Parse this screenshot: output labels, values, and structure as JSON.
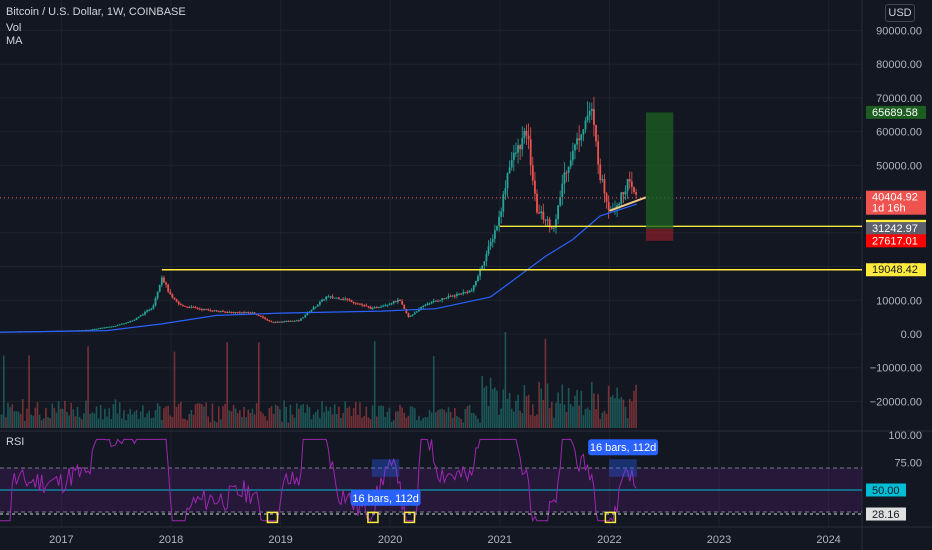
{
  "header": {
    "title": "Bitcoin / U.S. Dollar, 1W, COINBASE",
    "indicators": [
      "Vol",
      "MA"
    ],
    "currency_button": "USD"
  },
  "rsi_pane": {
    "label": "RSI"
  },
  "colors": {
    "background": "#131722",
    "up": "#26a69a",
    "down": "#ef5350",
    "ma": "#2962ff",
    "level": "#ffeb3b",
    "rsi": "#9c27b0",
    "grid": "#1e222d",
    "text": "#b2b5be"
  },
  "chart_data": [
    {
      "type": "candlestick",
      "title": "Bitcoin / U.S. Dollar, 1W, COINBASE",
      "x_ticks": [
        "2017",
        "2018",
        "2019",
        "2020",
        "2021",
        "2022",
        "2023",
        "2024"
      ],
      "y_ticks": [
        "90000.00",
        "80000.00",
        "70000.00",
        "60000.00",
        "50000.00",
        "40000.00",
        "30000.00",
        "20000.00",
        "10000.00",
        "0.00",
        "−10000.00",
        "−20000.00"
      ],
      "ylim": [
        -25000,
        95000
      ],
      "price_path": [
        [
          "2016-06",
          700
        ],
        [
          "2017-01",
          950
        ],
        [
          "2017-04",
          1200
        ],
        [
          "2017-07",
          2500
        ],
        [
          "2017-09",
          4200
        ],
        [
          "2017-11",
          8000
        ],
        [
          "2017-12",
          17000
        ],
        [
          "2018-01",
          11000
        ],
        [
          "2018-02",
          8500
        ],
        [
          "2018-04",
          7500
        ],
        [
          "2018-07",
          6500
        ],
        [
          "2018-10",
          6300
        ],
        [
          "2018-12",
          3500
        ],
        [
          "2019-03",
          4000
        ],
        [
          "2019-06",
          11000
        ],
        [
          "2019-08",
          10500
        ],
        [
          "2019-11",
          7500
        ],
        [
          "2020-02",
          10000
        ],
        [
          "2020-03",
          5000
        ],
        [
          "2020-05",
          9000
        ],
        [
          "2020-08",
          11500
        ],
        [
          "2020-10",
          13000
        ],
        [
          "2020-12",
          27000
        ],
        [
          "2021-01",
          35000
        ],
        [
          "2021-02",
          50000
        ],
        [
          "2021-04",
          60000
        ],
        [
          "2021-05",
          37000
        ],
        [
          "2021-07",
          31000
        ],
        [
          "2021-08",
          47000
        ],
        [
          "2021-10",
          61000
        ],
        [
          "2021-11",
          67000
        ],
        [
          "2021-12",
          47000
        ],
        [
          "2022-01",
          37000
        ],
        [
          "2022-02",
          39000
        ],
        [
          "2022-03",
          45000
        ],
        [
          "2022-04",
          40400
        ]
      ],
      "moving_average_path": [
        [
          "2016-06",
          500
        ],
        [
          "2017-06",
          1000
        ],
        [
          "2017-12",
          3000
        ],
        [
          "2018-06",
          5500
        ],
        [
          "2019-01",
          6200
        ],
        [
          "2019-12",
          6800
        ],
        [
          "2020-06",
          7500
        ],
        [
          "2020-12",
          11000
        ],
        [
          "2021-03",
          17000
        ],
        [
          "2021-06",
          23000
        ],
        [
          "2021-09",
          28000
        ],
        [
          "2021-12",
          35000
        ],
        [
          "2022-04",
          38500
        ]
      ],
      "horizontal_levels": [
        {
          "price": 31918.35,
          "label": "31918.35",
          "from": "2021-01"
        },
        {
          "price": 19048.42,
          "label": "19048.42",
          "from": "2017-12"
        }
      ],
      "trendline": {
        "from": [
          "2022-01",
          36500
        ],
        "to": [
          "2022-05",
          40500
        ]
      },
      "position_box": {
        "from": "2022-05",
        "to": "2022-08",
        "entry": 31242.97,
        "target": 65689.58,
        "stop": 27617.01
      },
      "price_labels": [
        {
          "text": "65689.58",
          "price": 65689.58,
          "bg": "#1b5e20",
          "fg": "#ffffff"
        },
        {
          "text": "40404.92",
          "sub": "1d 16h",
          "price": 40404.92,
          "bg": "#ef5350",
          "fg": "#ffffff"
        },
        {
          "text": "31918.35",
          "price": 31918.35,
          "bg": "#ffeb3b",
          "fg": "#131722"
        },
        {
          "text": "31242.97",
          "price": 31242.97,
          "bg": "#5d606b",
          "fg": "#ffffff"
        },
        {
          "text": "27617.01",
          "price": 27617.01,
          "bg": "#ff0000",
          "fg": "#ffffff"
        },
        {
          "text": "19048.42",
          "price": 19048.42,
          "bg": "#ffeb3b",
          "fg": "#131722"
        }
      ]
    },
    {
      "type": "line",
      "title": "RSI",
      "y_ticks": [
        "100.00",
        "75.00",
        "50.00"
      ],
      "ylim": [
        15,
        100
      ],
      "bands": [
        70,
        30
      ],
      "value_labels": [
        {
          "text": "50.00",
          "value": 50,
          "bg": "#00bcd4",
          "fg": "#131722"
        },
        {
          "text": "28.16",
          "value": 28.16,
          "bg": "#e0e0e0",
          "fg": "#131722",
          "dashed_line": true
        }
      ],
      "annotations": [
        {
          "text": "16 bars, 112d",
          "at": "2019-11",
          "range": [
            "2019-11",
            "2020-02"
          ],
          "placement": "below"
        },
        {
          "text": "16 bars, 112d",
          "at": "2022-01",
          "range": [
            "2022-01",
            "2022-04"
          ],
          "placement": "above"
        }
      ],
      "highlighted_lows": [
        "2018-12",
        "2019-11",
        "2020-03",
        "2022-01"
      ]
    }
  ]
}
